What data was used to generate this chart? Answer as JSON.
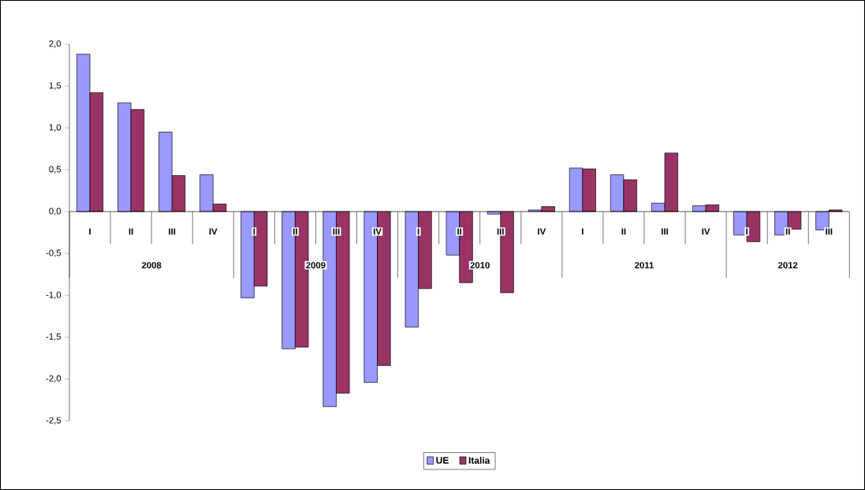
{
  "chart_data": {
    "type": "bar",
    "categories": [
      "I",
      "II",
      "III",
      "IV",
      "I",
      "II",
      "III",
      "IV",
      "I",
      "II",
      "III",
      "IV",
      "I",
      "II",
      "III",
      "IV",
      "I",
      "II",
      "III"
    ],
    "annotations": [
      "2008",
      "2009",
      "2010",
      "2011",
      "2012"
    ],
    "series": [
      {
        "name": "UE",
        "color": "#9999ff",
        "values": [
          1.88,
          1.3,
          0.95,
          0.44,
          -1.03,
          -1.64,
          -2.33,
          -2.04,
          -1.38,
          -0.52,
          -0.03,
          0.02,
          0.52,
          0.44,
          0.1,
          0.07,
          -0.28,
          -0.28,
          -0.22
        ]
      },
      {
        "name": "Italia",
        "color": "#993366",
        "values": [
          1.42,
          1.22,
          0.43,
          0.09,
          -0.89,
          -1.62,
          -2.17,
          -1.84,
          -0.92,
          -0.85,
          -0.97,
          0.06,
          0.51,
          0.38,
          0.7,
          0.08,
          -0.36,
          -0.21,
          0.02
        ]
      }
    ],
    "ylim": [
      -2.5,
      2.0
    ],
    "yticks": [
      {
        "value": -2.5,
        "label": "-2,5"
      },
      {
        "value": -2.0,
        "label": "-2,0"
      },
      {
        "value": -1.5,
        "label": "-1,5"
      },
      {
        "value": -1.0,
        "label": "-1,0"
      },
      {
        "value": -0.5,
        "label": "-0,5"
      },
      {
        "value": 0.0,
        "label": "0,0"
      },
      {
        "value": 0.5,
        "label": "0,5"
      },
      {
        "value": 1.0,
        "label": "1,0"
      },
      {
        "value": 1.5,
        "label": "1,5"
      },
      {
        "value": 2.0,
        "label": "2,0"
      }
    ],
    "legend": "bottom"
  }
}
